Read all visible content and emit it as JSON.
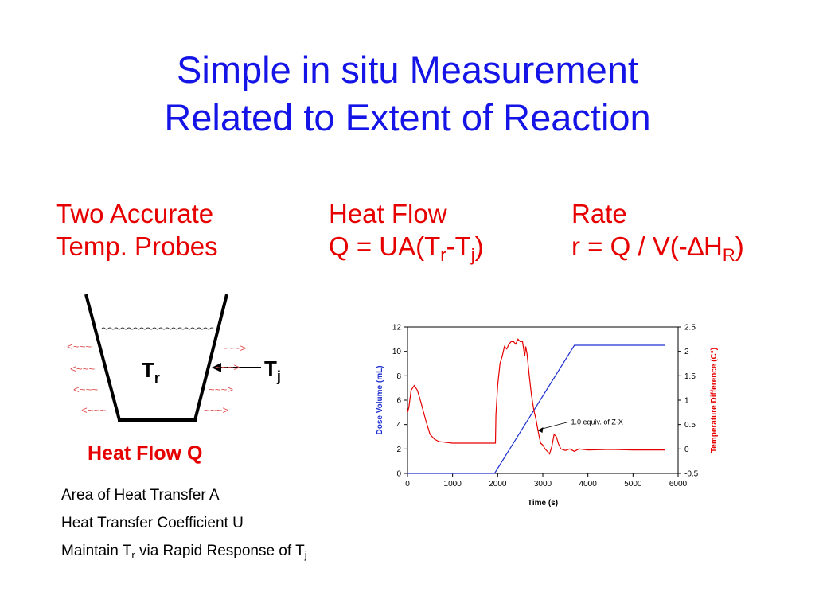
{
  "slide": {
    "title_line1": "Simple in situ Measurement",
    "title_line2": "Related to Extent of Reaction"
  },
  "columns": {
    "probes": {
      "line1": "Two Accurate",
      "line2": "Temp. Probes"
    },
    "heat_flow": {
      "line1": "Heat Flow",
      "eq_prefix": "Q = UA(T",
      "sub_r": "r",
      "dash": "-T",
      "sub_j": "j",
      "close": ")"
    },
    "rate": {
      "line1": "Rate",
      "eq_prefix": "r = Q / V(-",
      "delta": "∆",
      "h": "H",
      "sub_R": "R",
      "close": ")"
    }
  },
  "vessel": {
    "tr_label": "T",
    "tr_sub": "r",
    "tj_label": "T",
    "tj_sub": "j",
    "heat_mark": "<~~~",
    "heat_mark_out": "~~~>",
    "caption": "Heat Flow Q"
  },
  "bullets": {
    "area": "Area of Heat Transfer A",
    "coef": "Heat Transfer Coefficient U",
    "maintain_prefix": "Maintain T",
    "maintain_sub_r": "r",
    "maintain_mid": " via Rapid Response of T",
    "maintain_sub_j": "j"
  },
  "colors": {
    "title": "#1414e6",
    "heading": "#e60000",
    "dose": "#1f2fd0",
    "temp": "#e60000"
  },
  "chart_data": {
    "type": "line",
    "xlabel": "Time (s)",
    "ylabel": "Dose Volume (mL)",
    "y2label": "Temperature Difference (C°)",
    "xlim": [
      0,
      6000
    ],
    "ylim": [
      0,
      12
    ],
    "y2lim": [
      -0.5,
      2.5
    ],
    "xticks": [
      "0",
      "1000",
      "2000",
      "3000",
      "4000",
      "5000",
      "6000"
    ],
    "yticks": [
      "0",
      "2",
      "4",
      "6",
      "8",
      "10",
      "12"
    ],
    "y2ticks": [
      "-0.5",
      "0",
      "0.5",
      "1",
      "1.5",
      "2",
      "2.5"
    ],
    "annotation": "1.0 equiv. of Z-X",
    "annotation_x": 2850,
    "series": [
      {
        "axis": "left",
        "color": "#1f2fd0",
        "points": [
          [
            0,
            0
          ],
          [
            1930,
            0
          ],
          [
            3700,
            10.5
          ],
          [
            5700,
            10.5
          ]
        ]
      },
      {
        "axis": "right",
        "color": "#e60000",
        "points": [
          [
            0,
            0.75
          ],
          [
            30,
            0.85
          ],
          [
            80,
            1.2
          ],
          [
            150,
            1.3
          ],
          [
            220,
            1.2
          ],
          [
            300,
            0.95
          ],
          [
            400,
            0.6
          ],
          [
            500,
            0.3
          ],
          [
            600,
            0.2
          ],
          [
            700,
            0.15
          ],
          [
            800,
            0.14
          ],
          [
            1000,
            0.12
          ],
          [
            1500,
            0.12
          ],
          [
            1950,
            0.12
          ],
          [
            1960,
            0.7
          ],
          [
            2000,
            1.3
          ],
          [
            2050,
            1.75
          ],
          [
            2100,
            1.9
          ],
          [
            2150,
            2.1
          ],
          [
            2200,
            2.05
          ],
          [
            2250,
            2.15
          ],
          [
            2300,
            2.2
          ],
          [
            2350,
            2.2
          ],
          [
            2400,
            2.15
          ],
          [
            2450,
            2.25
          ],
          [
            2500,
            2.2
          ],
          [
            2550,
            2.2
          ],
          [
            2600,
            1.9
          ],
          [
            2620,
            2.1
          ],
          [
            2650,
            1.95
          ],
          [
            2700,
            1.5
          ],
          [
            2750,
            1.1
          ],
          [
            2800,
            0.8
          ],
          [
            2850,
            0.6
          ],
          [
            2900,
            0.35
          ],
          [
            2950,
            0.12
          ],
          [
            3000,
            0.08
          ],
          [
            3050,
            0.0
          ],
          [
            3100,
            -0.05
          ],
          [
            3150,
            -0.1
          ],
          [
            3200,
            0.05
          ],
          [
            3250,
            0.3
          ],
          [
            3300,
            0.25
          ],
          [
            3350,
            0.1
          ],
          [
            3400,
            0.0
          ],
          [
            3500,
            -0.03
          ],
          [
            3600,
            0.0
          ],
          [
            3700,
            -0.05
          ],
          [
            3800,
            0.0
          ],
          [
            4000,
            -0.02
          ],
          [
            4500,
            -0.01
          ],
          [
            5000,
            -0.02
          ],
          [
            5700,
            -0.02
          ]
        ]
      }
    ]
  }
}
